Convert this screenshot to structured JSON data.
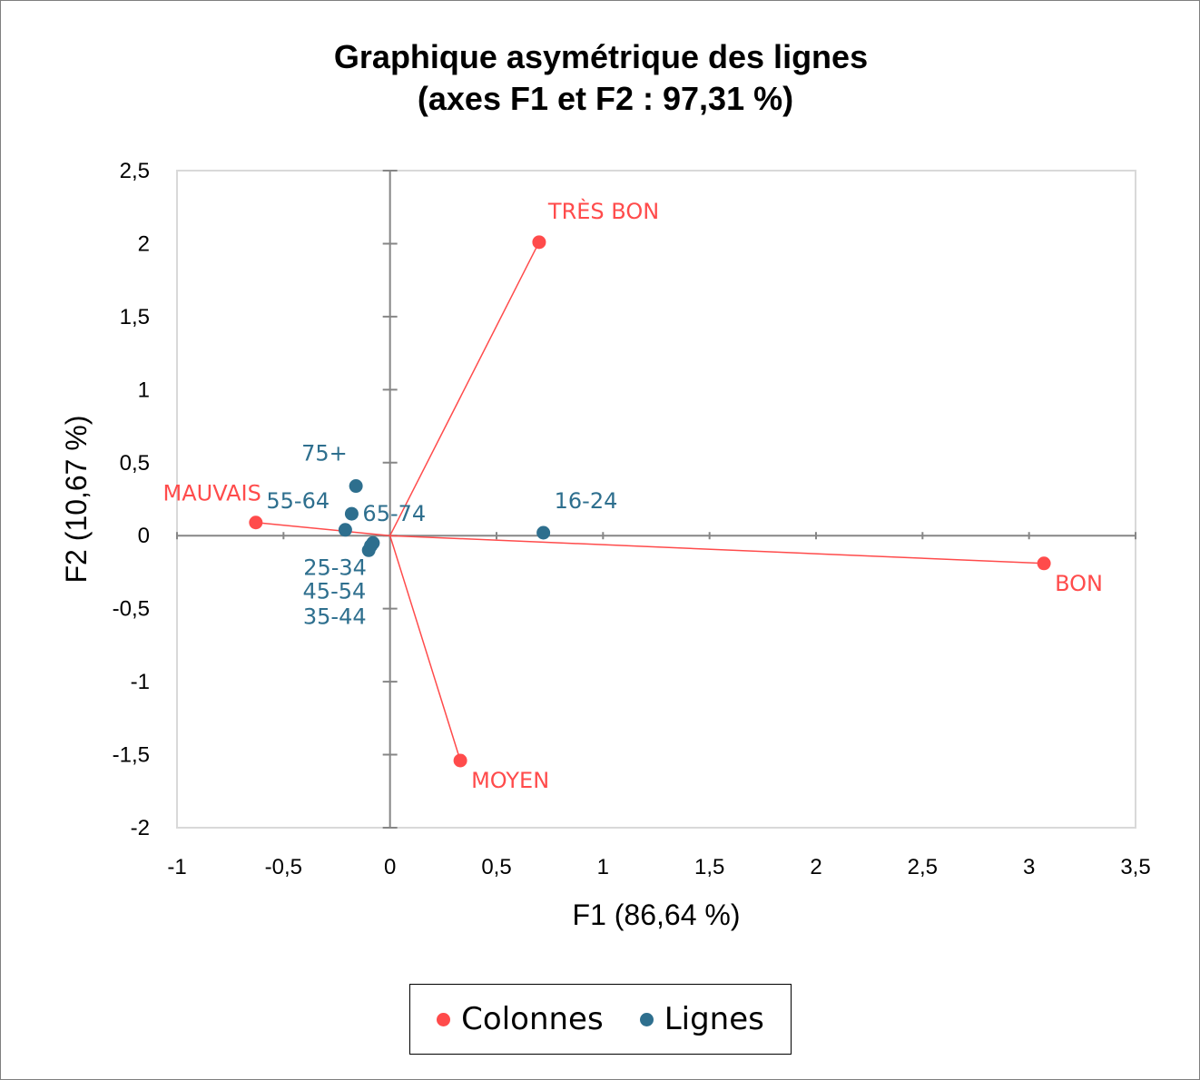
{
  "chart_data": {
    "type": "scatter",
    "title": [
      "Graphique asymétrique des lignes",
      "(axes F1 et F2 : 97,31 %)"
    ],
    "xlabel": "F1 (86,64 %)",
    "ylabel": "F2 (10,67 %)",
    "xlim": [
      -1,
      3.5
    ],
    "ylim": [
      -2,
      2.5
    ],
    "xticks": [
      "-1",
      "-0,5",
      "0",
      "0,5",
      "1",
      "1,5",
      "2",
      "2,5",
      "3",
      "3,5"
    ],
    "yticks": [
      "-2",
      "-1,5",
      "-1",
      "-0,5",
      "0",
      "0,5",
      "1",
      "1,5",
      "2",
      "2,5"
    ],
    "grid": false,
    "legend_position": "bottom",
    "series": [
      {
        "name": "Colonnes",
        "color": "#ff4b4b",
        "lines_from_origin": true,
        "points": [
          {
            "label": "TRÈS BON",
            "x": 0.7,
            "y": 2.01
          },
          {
            "label": "BON",
            "x": 3.07,
            "y": -0.19
          },
          {
            "label": "MOYEN",
            "x": 0.33,
            "y": -1.54
          },
          {
            "label": "MAUVAIS",
            "x": -0.63,
            "y": 0.09
          }
        ]
      },
      {
        "name": "Lignes",
        "color": "#2e6f8e",
        "lines_from_origin": false,
        "points": [
          {
            "label": "16-24",
            "x": 0.72,
            "y": 0.02
          },
          {
            "label": "75+",
            "x": -0.16,
            "y": 0.34
          },
          {
            "label": "65-74",
            "x": -0.18,
            "y": 0.15
          },
          {
            "label": "55-64",
            "x": -0.21,
            "y": 0.04
          },
          {
            "label": "25-34",
            "x": -0.1,
            "y": -0.1
          },
          {
            "label": "45-54",
            "x": -0.09,
            "y": -0.07
          },
          {
            "label": "35-44",
            "x": -0.08,
            "y": -0.05
          }
        ]
      }
    ]
  }
}
